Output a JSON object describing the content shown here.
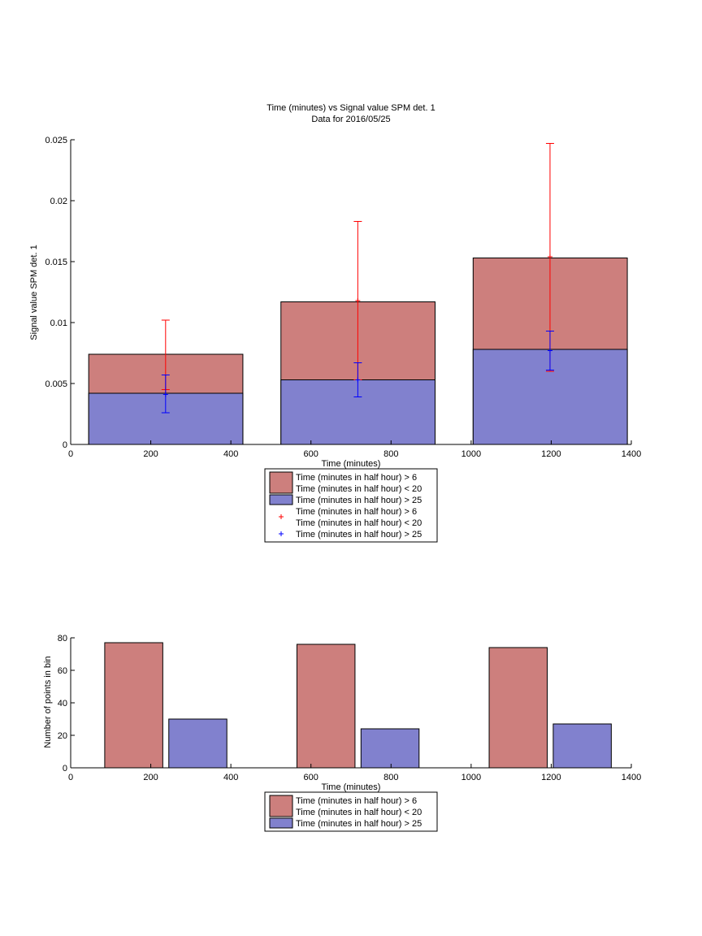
{
  "colors": {
    "red_bar": "#cd7f7d",
    "blue_bar": "#8181ce",
    "red_err": "#ff0000",
    "blue_err": "#0000ff",
    "axis": "#000000"
  },
  "chart_data": [
    {
      "type": "bar",
      "title": "Time (minutes) vs Signal value SPM det. 1",
      "subtitle": "Data for 2016/05/25",
      "xlabel": "Time (minutes)",
      "ylabel": "Signal value SPM det. 1",
      "xlim": [
        0,
        1400
      ],
      "ylim": [
        0,
        0.025
      ],
      "xticks": [
        "0",
        "200",
        "400",
        "600",
        "800",
        "1000",
        "1200",
        "1400"
      ],
      "yticks": [
        "0",
        "0.005",
        "0.01",
        "0.015",
        "0.02",
        "0.025"
      ],
      "bars": {
        "x_ranges": [
          [
            45,
            430
          ],
          [
            525,
            910
          ],
          [
            1005,
            1390
          ]
        ],
        "series": [
          {
            "name": "Time (minutes in half hour) > 6\nTime (minutes in half hour) < 20",
            "color": "#cd7f7d",
            "values": [
              0.0074,
              0.0117,
              0.0153
            ]
          },
          {
            "name": "Time (minutes in half hour) > 25",
            "color": "#8181ce",
            "values": [
              0.0042,
              0.0053,
              0.0078
            ]
          }
        ]
      },
      "errorbars": [
        {
          "name": "Time (minutes in half hour) > 6\nTime (minutes in half hour) < 20",
          "color": "#ff0000",
          "x": [
            237,
            717,
            1197
          ],
          "y": [
            0.0045,
            0.0118,
            0.0154
          ],
          "upper": [
            0.0102,
            0.0183,
            0.0247
          ],
          "lower": [
            0.0045,
            0.0053,
            0.006
          ]
        },
        {
          "name": "Time (minutes in half hour) > 25",
          "color": "#0000ff",
          "x": [
            237,
            717,
            1197
          ],
          "y": [
            0.0041,
            0.0053,
            0.0077
          ],
          "upper": [
            0.0057,
            0.0067,
            0.0093
          ],
          "lower": [
            0.0026,
            0.0039,
            0.0061
          ]
        }
      ],
      "legend": {
        "placement": "below",
        "entries": [
          {
            "kind": "patch",
            "color": "#cd7f7d",
            "lines": [
              "Time (minutes in half hour) > 6",
              "Time (minutes in half hour) < 20"
            ]
          },
          {
            "kind": "patch",
            "color": "#8181ce",
            "lines": [
              "Time (minutes in half hour) > 25"
            ]
          },
          {
            "kind": "marker",
            "color": "#ff0000",
            "lines": [
              "Time (minutes in half hour) > 6",
              "Time (minutes in half hour) < 20"
            ]
          },
          {
            "kind": "marker",
            "color": "#0000ff",
            "lines": [
              "Time (minutes in half hour) > 25"
            ]
          }
        ]
      }
    },
    {
      "type": "bar",
      "title": "",
      "xlabel": "Time (minutes)",
      "ylabel": "Number of points in bin",
      "xlim": [
        0,
        1400
      ],
      "ylim": [
        0,
        80
      ],
      "xticks": [
        "0",
        "200",
        "400",
        "600",
        "800",
        "1000",
        "1200",
        "1400"
      ],
      "yticks": [
        "0",
        "20",
        "40",
        "60",
        "80"
      ],
      "bars": {
        "x_ranges": null,
        "series": [
          {
            "name": "Time (minutes in half hour) > 6\nTime (minutes in half hour) < 20",
            "color": "#cd7f7d",
            "x_ranges": [
              [
                85,
                230
              ],
              [
                565,
                710
              ],
              [
                1045,
                1190
              ]
            ],
            "values": [
              77,
              76,
              74
            ]
          },
          {
            "name": "Time (minutes in half hour) > 25",
            "color": "#8181ce",
            "x_ranges": [
              [
                245,
                390
              ],
              [
                725,
                870
              ],
              [
                1205,
                1350
              ]
            ],
            "values": [
              30,
              24,
              27
            ]
          }
        ]
      },
      "legend": {
        "placement": "below",
        "entries": [
          {
            "kind": "patch",
            "color": "#cd7f7d",
            "lines": [
              "Time (minutes in half hour) > 6",
              "Time (minutes in half hour) < 20"
            ]
          },
          {
            "kind": "patch",
            "color": "#8181ce",
            "lines": [
              "Time (minutes in half hour) > 25"
            ]
          }
        ]
      }
    }
  ]
}
